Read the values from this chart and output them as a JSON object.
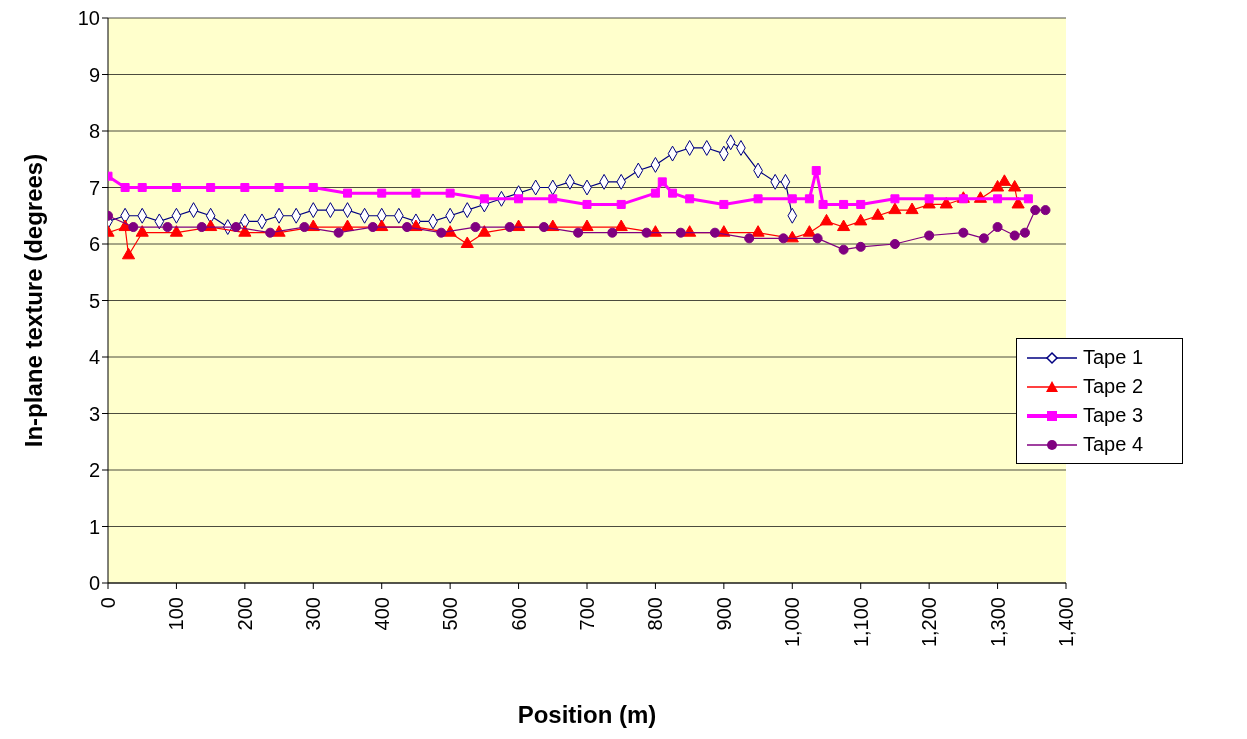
{
  "chart_data": {
    "type": "line",
    "xlabel": "Position (m)",
    "ylabel": "In-plane texture (degrees)",
    "xlim": [
      0,
      1400
    ],
    "xticks": [
      0,
      100,
      200,
      300,
      400,
      500,
      600,
      700,
      800,
      900,
      {
        "value": 1000,
        "label": "1,000"
      },
      {
        "value": 1100,
        "label": "1,100"
      },
      {
        "value": 1200,
        "label": "1,200"
      },
      {
        "value": 1300,
        "label": "1,300"
      },
      {
        "value": 1400,
        "label": "1,400"
      }
    ],
    "ylim": [
      0,
      10
    ],
    "yticks": [
      0,
      1,
      2,
      3,
      4,
      5,
      6,
      7,
      8,
      9,
      10
    ],
    "grid": "y",
    "legend": "right",
    "series": [
      {
        "name": "Tape 1",
        "color": "#000080",
        "marker": "diamond",
        "x": [
          0,
          25,
          50,
          75,
          100,
          125,
          150,
          175,
          200,
          225,
          250,
          275,
          300,
          325,
          350,
          375,
          400,
          425,
          450,
          475,
          500,
          525,
          550,
          575,
          600,
          625,
          650,
          675,
          700,
          725,
          750,
          775,
          800,
          825,
          850,
          875,
          900,
          910,
          925,
          950,
          975,
          990,
          1000
        ],
        "values": [
          6.4,
          6.5,
          6.5,
          6.4,
          6.5,
          6.6,
          6.5,
          6.3,
          6.4,
          6.4,
          6.5,
          6.5,
          6.6,
          6.6,
          6.6,
          6.5,
          6.5,
          6.5,
          6.4,
          6.4,
          6.5,
          6.6,
          6.7,
          6.8,
          6.9,
          7.0,
          7.0,
          7.1,
          7.0,
          7.1,
          7.1,
          7.3,
          7.4,
          7.6,
          7.7,
          7.7,
          7.6,
          7.8,
          7.7,
          7.3,
          7.1,
          7.1,
          6.5
        ]
      },
      {
        "name": "Tape 2",
        "color": "#ff0000",
        "marker": "triangle",
        "x": [
          0,
          25,
          30,
          50,
          100,
          150,
          200,
          250,
          300,
          350,
          400,
          450,
          500,
          525,
          550,
          600,
          650,
          700,
          750,
          800,
          850,
          900,
          950,
          1000,
          1025,
          1050,
          1075,
          1100,
          1125,
          1150,
          1175,
          1200,
          1225,
          1250,
          1275,
          1300,
          1310,
          1325,
          1330
        ],
        "values": [
          6.2,
          6.3,
          5.8,
          6.2,
          6.2,
          6.3,
          6.2,
          6.2,
          6.3,
          6.3,
          6.3,
          6.3,
          6.2,
          6.0,
          6.2,
          6.3,
          6.3,
          6.3,
          6.3,
          6.2,
          6.2,
          6.2,
          6.2,
          6.1,
          6.2,
          6.4,
          6.3,
          6.4,
          6.5,
          6.6,
          6.6,
          6.7,
          6.7,
          6.8,
          6.8,
          7.0,
          7.1,
          7.0,
          6.7
        ]
      },
      {
        "name": "Tape 3",
        "color": "#ff00ff",
        "marker": "square",
        "x": [
          0,
          25,
          50,
          100,
          150,
          200,
          250,
          300,
          350,
          400,
          450,
          500,
          550,
          600,
          650,
          700,
          750,
          800,
          810,
          825,
          850,
          900,
          950,
          1000,
          1025,
          1035,
          1045,
          1075,
          1100,
          1150,
          1200,
          1250,
          1300,
          1345
        ],
        "values": [
          7.2,
          7.0,
          7.0,
          7.0,
          7.0,
          7.0,
          7.0,
          7.0,
          6.9,
          6.9,
          6.9,
          6.9,
          6.8,
          6.8,
          6.8,
          6.7,
          6.7,
          6.9,
          7.1,
          6.9,
          6.8,
          6.7,
          6.8,
          6.8,
          6.8,
          7.3,
          6.7,
          6.7,
          6.7,
          6.8,
          6.8,
          6.8,
          6.8,
          6.8
        ]
      },
      {
        "name": "Tape 4",
        "color": "#800080",
        "marker": "circle",
        "x": [
          0,
          37,
          87,
          137,
          187,
          237,
          287,
          337,
          387,
          437,
          487,
          537,
          587,
          637,
          687,
          737,
          787,
          837,
          887,
          937,
          987,
          1037,
          1075,
          1100,
          1150,
          1200,
          1250,
          1280,
          1300,
          1325,
          1340,
          1355,
          1370
        ],
        "values": [
          6.5,
          6.3,
          6.3,
          6.3,
          6.3,
          6.2,
          6.3,
          6.2,
          6.3,
          6.3,
          6.2,
          6.3,
          6.3,
          6.3,
          6.2,
          6.2,
          6.2,
          6.2,
          6.2,
          6.1,
          6.1,
          6.1,
          5.9,
          5.95,
          6.0,
          6.15,
          6.2,
          6.1,
          6.3,
          6.15,
          6.2,
          6.6,
          6.6
        ]
      }
    ]
  }
}
